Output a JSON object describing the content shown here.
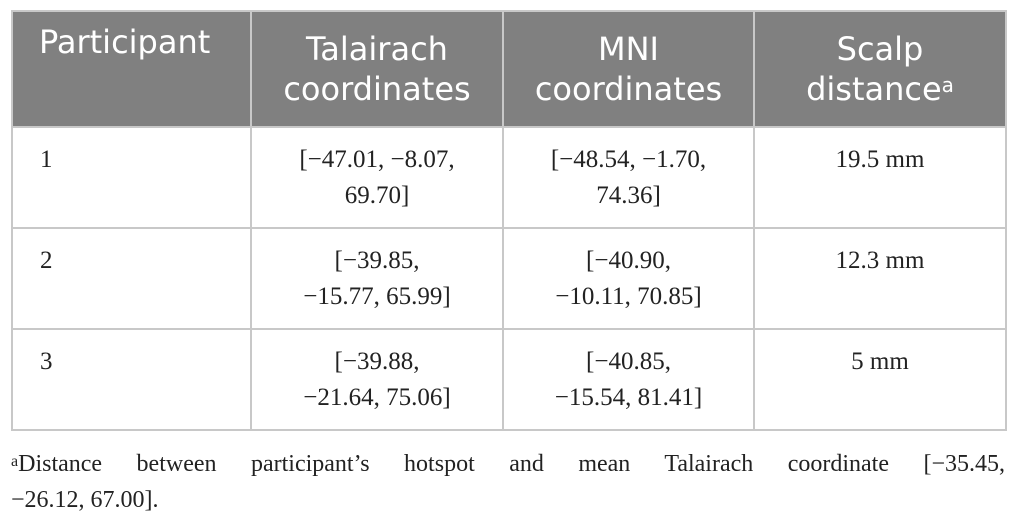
{
  "table": {
    "headers": [
      {
        "lines": [
          "Participant"
        ],
        "sup": ""
      },
      {
        "lines": [
          "Talairach",
          "coordinates"
        ],
        "sup": ""
      },
      {
        "lines": [
          "MNI",
          "coordinates"
        ],
        "sup": ""
      },
      {
        "lines": [
          "Scalp",
          "distance"
        ],
        "sup": "a"
      }
    ],
    "rows": [
      {
        "participant": "1",
        "talairach": [
          "[−47.01, −8.07,",
          "69.70]"
        ],
        "mni": [
          "[−48.54, −1.70,",
          "74.36]"
        ],
        "scalp_distance": "19.5 mm"
      },
      {
        "participant": "2",
        "talairach": [
          "[−39.85,",
          "−15.77, 65.99]"
        ],
        "mni": [
          "[−40.90,",
          "−10.11, 70.85]"
        ],
        "scalp_distance": "12.3 mm"
      },
      {
        "participant": "3",
        "talairach": [
          "[−39.88,",
          "−21.64, 75.06]"
        ],
        "mni": [
          "[−40.85,",
          "−15.54, 81.41]"
        ],
        "scalp_distance": "5 mm"
      }
    ]
  },
  "footnote": {
    "marker": "a",
    "line1": "Distance between participant’s hotspot and mean Talairach coordinate [−35.45,",
    "line2": "−26.12, 67.00]."
  },
  "colors": {
    "header_bg": "#808080",
    "header_text": "#ffffff",
    "grid": "#c8c8c8",
    "body_text": "#222222"
  }
}
